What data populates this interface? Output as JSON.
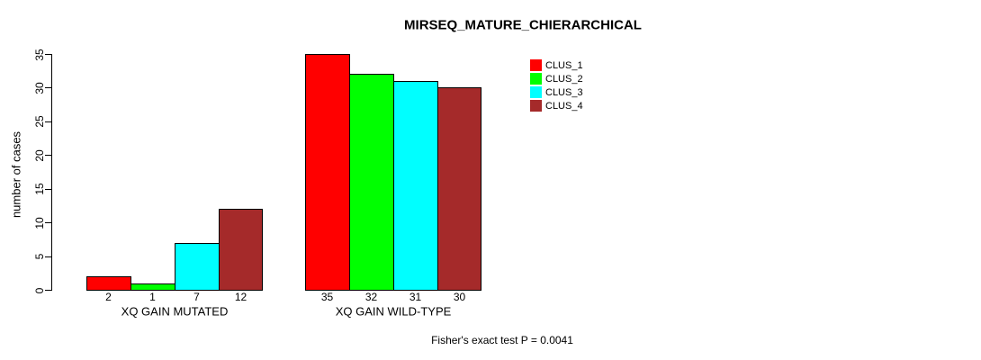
{
  "chart_data": {
    "type": "bar",
    "title": "MIRSEQ_MATURE_CHIERARCHICAL",
    "ylabel": "number of cases",
    "xlabel": "",
    "ylim": [
      0,
      35
    ],
    "yticks": [
      0,
      5,
      10,
      15,
      20,
      25,
      30,
      35
    ],
    "grid": false,
    "legend_position": "top-right",
    "categories": [
      "XQ GAIN MUTATED",
      "XQ GAIN WILD-TYPE"
    ],
    "series": [
      {
        "name": "CLUS_1",
        "color": "#ff0000",
        "values": [
          2,
          35
        ]
      },
      {
        "name": "CLUS_2",
        "color": "#00ff00",
        "values": [
          1,
          32
        ]
      },
      {
        "name": "CLUS_3",
        "color": "#00ffff",
        "values": [
          7,
          31
        ]
      },
      {
        "name": "CLUS_4",
        "color": "#a52a2a",
        "values": [
          12,
          30
        ]
      }
    ],
    "bar_value_labels": [
      [
        2,
        1,
        7,
        12
      ],
      [
        35,
        32,
        31,
        30
      ]
    ],
    "annotation": "Fisher's exact test P = 0.0041"
  }
}
